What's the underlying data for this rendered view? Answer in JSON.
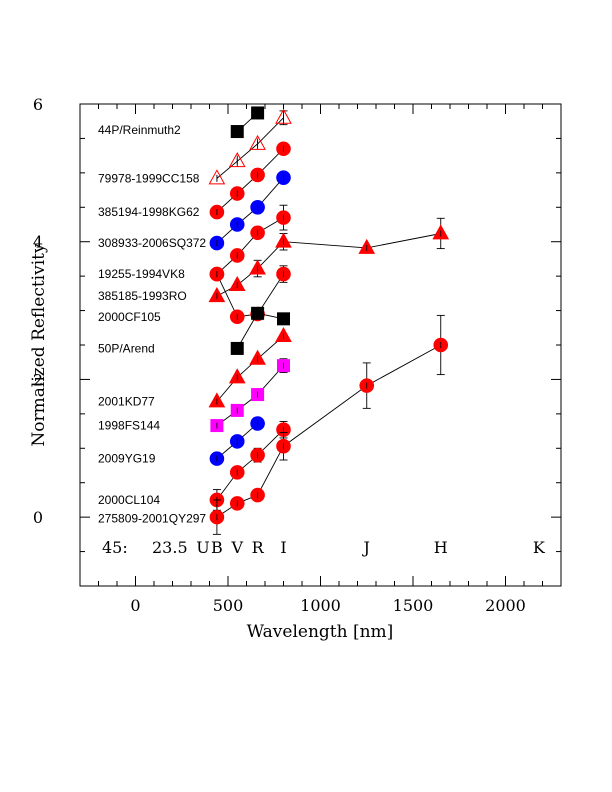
{
  "chart_data": {
    "type": "scatter",
    "title": "",
    "xlabel": "Wavelength [nm]",
    "ylabel": "Normalized Reflectivity",
    "xlim": [
      -300,
      2300
    ],
    "ylim": [
      -1,
      6
    ],
    "x_ticks": [
      0,
      500,
      1000,
      1500,
      2000
    ],
    "y_ticks": [
      0,
      2,
      4,
      6
    ],
    "grid": false,
    "annotation": {
      "id": "45:",
      "value": "23.5"
    },
    "bands": [
      {
        "name": "U",
        "x": 365
      },
      {
        "name": "B",
        "x": 440
      },
      {
        "name": "V",
        "x": 550
      },
      {
        "name": "R",
        "x": 660
      },
      {
        "name": "I",
        "x": 800
      },
      {
        "name": "J",
        "x": 1250
      },
      {
        "name": "H",
        "x": 1650
      },
      {
        "name": "K",
        "x": 2180
      }
    ],
    "series": [
      {
        "name": "44P/Reinmuth2",
        "marker": "square",
        "color": "#000000",
        "filled": true,
        "label_y": 5.62,
        "points": [
          [
            550,
            5.6,
            0.05
          ],
          [
            660,
            5.87,
            0.05
          ]
        ]
      },
      {
        "name": "44P/Reinmuth2",
        "marker": "triangle",
        "color": "#ff0000",
        "filled": false,
        "label_y": 5.62,
        "points": [
          [
            440,
            4.92,
            0.05
          ],
          [
            550,
            5.17,
            0.08
          ],
          [
            660,
            5.42,
            0.08
          ],
          [
            800,
            5.8,
            0.1
          ]
        ]
      },
      {
        "name": "79978-1999CC158",
        "marker": "circle",
        "color": "#ff0000",
        "filled": true,
        "label_y": 4.92,
        "points": [
          [
            440,
            4.43,
            0.05
          ],
          [
            550,
            4.7,
            0.05
          ],
          [
            660,
            4.97,
            0.05
          ],
          [
            800,
            5.35,
            0.06
          ]
        ]
      },
      {
        "name": "385194-1998KG62",
        "marker": "circle",
        "color": "#0000ff",
        "filled": true,
        "label_y": 4.43,
        "points": [
          [
            440,
            3.98,
            0.05
          ],
          [
            550,
            4.25,
            0.05
          ],
          [
            660,
            4.5,
            0.05
          ],
          [
            800,
            4.93,
            0.05
          ]
        ]
      },
      {
        "name": "308933-2006SQ372",
        "marker": "circle",
        "color": "#ff0000",
        "filled": true,
        "label_y": 3.98,
        "points": [
          [
            440,
            3.53,
            0.05
          ],
          [
            550,
            3.8,
            0.05
          ],
          [
            660,
            4.13,
            0.08
          ],
          [
            800,
            4.35,
            0.18
          ]
        ]
      },
      {
        "name": "19255-1994VK8",
        "marker": "triangle",
        "color": "#ff0000",
        "filled": true,
        "label_y": 3.53,
        "points": [
          [
            440,
            3.21,
            0.05
          ],
          [
            550,
            3.37,
            0.05
          ],
          [
            660,
            3.61,
            0.12
          ],
          [
            800,
            4.0,
            0.12
          ],
          [
            1250,
            3.91,
            0.08
          ],
          [
            1650,
            4.12,
            0.22
          ]
        ]
      },
      {
        "name": "385185-1993RO",
        "marker": "circle",
        "color": "#ff0000",
        "filled": true,
        "label_y": 3.21,
        "points": [
          [
            440,
            3.53,
            0.05
          ],
          [
            550,
            2.91,
            0.05
          ],
          [
            660,
            2.95,
            0.05
          ],
          [
            800,
            3.53,
            0.12
          ]
        ]
      },
      {
        "name": "2000CF105",
        "marker": "square",
        "color": "#000000",
        "filled": true,
        "label_y": 2.91,
        "points": [
          [
            550,
            2.45,
            0.05
          ],
          [
            660,
            2.96,
            0.06
          ],
          [
            800,
            2.88,
            0.08
          ]
        ]
      },
      {
        "name": "50P/Arend",
        "marker": "triangle",
        "color": "#ff0000",
        "filled": true,
        "label_y": 2.45,
        "points": [
          [
            440,
            1.68,
            0.05
          ],
          [
            550,
            2.03,
            0.05
          ],
          [
            660,
            2.3,
            0.05
          ],
          [
            800,
            2.63,
            0.07
          ]
        ]
      },
      {
        "name": "2001KD77",
        "marker": "square",
        "color": "#ff00ff",
        "filled": true,
        "label_y": 1.68,
        "points": [
          [
            440,
            1.33,
            0.05
          ],
          [
            550,
            1.55,
            0.06
          ],
          [
            660,
            1.78,
            0.06
          ],
          [
            800,
            2.2,
            0.1
          ]
        ]
      },
      {
        "name": "1998FS144",
        "marker": "circle",
        "color": "#0000ff",
        "filled": true,
        "label_y": 1.33,
        "points": [
          [
            440,
            0.85,
            0.05
          ],
          [
            550,
            1.1,
            0.05
          ],
          [
            660,
            1.36,
            0.05
          ]
        ]
      },
      {
        "name": "2009YG19",
        "marker": "circle",
        "color": "#ff0000",
        "filled": true,
        "label_y": 0.85,
        "points": [
          [
            440,
            0.25,
            0.15
          ],
          [
            550,
            0.65,
            0.08
          ],
          [
            660,
            0.9,
            0.1
          ],
          [
            800,
            1.27,
            0.12
          ]
        ]
      },
      {
        "name": "2000CL104",
        "marker": "circle",
        "color": "#ff0000",
        "filled": true,
        "label_y": 0.25,
        "points": [
          [
            440,
            0.0,
            0.25
          ],
          [
            550,
            0.2,
            0.05
          ],
          [
            660,
            0.32,
            0.08
          ],
          [
            800,
            1.03,
            0.2
          ],
          [
            1250,
            1.91,
            0.33
          ],
          [
            1650,
            2.5,
            0.43
          ]
        ]
      },
      {
        "name": "275809-2001QY297",
        "marker": "circle",
        "color": "#ff0000",
        "filled": true,
        "label_y": -0.02,
        "points": []
      }
    ],
    "labels_order": [
      {
        "text": "44P/Reinmuth2",
        "y": 5.62
      },
      {
        "text": "79978-1999CC158",
        "y": 4.92
      },
      {
        "text": "385194-1998KG62",
        "y": 4.43
      },
      {
        "text": "308933-2006SQ372",
        "y": 3.98
      },
      {
        "text": "19255-1994VK8",
        "y": 3.53
      },
      {
        "text": "385185-1993RO",
        "y": 3.21
      },
      {
        "text": "2000CF105",
        "y": 2.91
      },
      {
        "text": "50P/Arend",
        "y": 2.45
      },
      {
        "text": "2001KD77",
        "y": 1.68
      },
      {
        "text": "1998FS144",
        "y": 1.33
      },
      {
        "text": "2009YG19",
        "y": 0.85
      },
      {
        "text": "2000CL104",
        "y": 0.25
      },
      {
        "text": "275809-2001QY297",
        "y": -0.02
      }
    ]
  }
}
